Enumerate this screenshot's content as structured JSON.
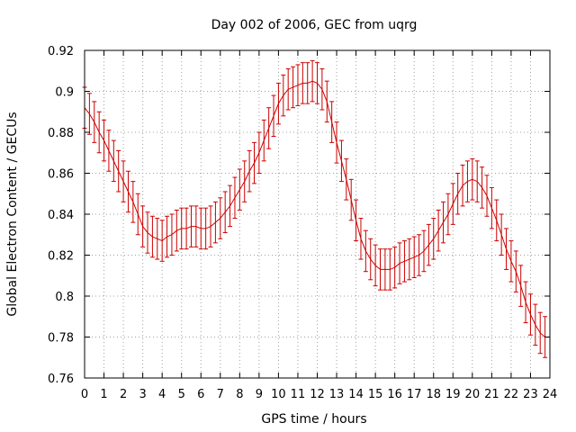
{
  "chart_data": {
    "type": "line",
    "title": "Day 002 of 2006, GEC from uqrg",
    "xlabel": "GPS time / hours",
    "ylabel": "Global Electron Content / GECUs",
    "xlim": [
      0,
      24
    ],
    "ylim": [
      0.76,
      0.92
    ],
    "x_ticks": [
      "0",
      "1",
      "2",
      "3",
      "4",
      "5",
      "6",
      "7",
      "8",
      "9",
      "10",
      "11",
      "12",
      "13",
      "14",
      "15",
      "16",
      "17",
      "18",
      "19",
      "20",
      "21",
      "22",
      "23",
      "24"
    ],
    "y_ticks": [
      "0.76",
      "0.78",
      "0.8",
      "0.82",
      "0.84",
      "0.86",
      "0.88",
      "0.9",
      "0.92"
    ],
    "grid": true,
    "series": [
      {
        "name": "GEC",
        "color": "#cc0000",
        "error_bar": 0.01,
        "points": [
          [
            0.0,
            0.892
          ],
          [
            0.25,
            0.889
          ],
          [
            0.5,
            0.885
          ],
          [
            0.75,
            0.88
          ],
          [
            1.0,
            0.876
          ],
          [
            1.25,
            0.871
          ],
          [
            1.5,
            0.866
          ],
          [
            1.75,
            0.861
          ],
          [
            2.0,
            0.856
          ],
          [
            2.25,
            0.851
          ],
          [
            2.5,
            0.846
          ],
          [
            2.75,
            0.84
          ],
          [
            3.0,
            0.834
          ],
          [
            3.25,
            0.831
          ],
          [
            3.5,
            0.829
          ],
          [
            3.75,
            0.828
          ],
          [
            4.0,
            0.827
          ],
          [
            4.25,
            0.829
          ],
          [
            4.5,
            0.83
          ],
          [
            4.75,
            0.832
          ],
          [
            5.0,
            0.833
          ],
          [
            5.25,
            0.833
          ],
          [
            5.5,
            0.834
          ],
          [
            5.75,
            0.834
          ],
          [
            6.0,
            0.833
          ],
          [
            6.25,
            0.833
          ],
          [
            6.5,
            0.834
          ],
          [
            6.75,
            0.836
          ],
          [
            7.0,
            0.838
          ],
          [
            7.25,
            0.841
          ],
          [
            7.5,
            0.844
          ],
          [
            7.75,
            0.848
          ],
          [
            8.0,
            0.852
          ],
          [
            8.25,
            0.856
          ],
          [
            8.5,
            0.861
          ],
          [
            8.75,
            0.865
          ],
          [
            9.0,
            0.87
          ],
          [
            9.25,
            0.876
          ],
          [
            9.5,
            0.882
          ],
          [
            9.75,
            0.888
          ],
          [
            10.0,
            0.894
          ],
          [
            10.25,
            0.898
          ],
          [
            10.5,
            0.901
          ],
          [
            10.75,
            0.902
          ],
          [
            11.0,
            0.903
          ],
          [
            11.25,
            0.904
          ],
          [
            11.5,
            0.904
          ],
          [
            11.75,
            0.905
          ],
          [
            12.0,
            0.904
          ],
          [
            12.25,
            0.901
          ],
          [
            12.5,
            0.895
          ],
          [
            12.75,
            0.885
          ],
          [
            13.0,
            0.875
          ],
          [
            13.25,
            0.866
          ],
          [
            13.5,
            0.857
          ],
          [
            13.75,
            0.847
          ],
          [
            14.0,
            0.837
          ],
          [
            14.25,
            0.828
          ],
          [
            14.5,
            0.822
          ],
          [
            14.75,
            0.818
          ],
          [
            15.0,
            0.815
          ],
          [
            15.25,
            0.813
          ],
          [
            15.5,
            0.813
          ],
          [
            15.75,
            0.813
          ],
          [
            16.0,
            0.814
          ],
          [
            16.25,
            0.816
          ],
          [
            16.5,
            0.817
          ],
          [
            16.75,
            0.818
          ],
          [
            17.0,
            0.819
          ],
          [
            17.25,
            0.82
          ],
          [
            17.5,
            0.822
          ],
          [
            17.75,
            0.825
          ],
          [
            18.0,
            0.828
          ],
          [
            18.25,
            0.832
          ],
          [
            18.5,
            0.836
          ],
          [
            18.75,
            0.84
          ],
          [
            19.0,
            0.845
          ],
          [
            19.25,
            0.85
          ],
          [
            19.5,
            0.854
          ],
          [
            19.75,
            0.856
          ],
          [
            20.0,
            0.857
          ],
          [
            20.25,
            0.856
          ],
          [
            20.5,
            0.853
          ],
          [
            20.75,
            0.849
          ],
          [
            21.0,
            0.843
          ],
          [
            21.25,
            0.837
          ],
          [
            21.5,
            0.83
          ],
          [
            21.75,
            0.823
          ],
          [
            22.0,
            0.817
          ],
          [
            22.25,
            0.812
          ],
          [
            22.5,
            0.805
          ],
          [
            22.75,
            0.797
          ],
          [
            23.0,
            0.791
          ],
          [
            23.25,
            0.786
          ],
          [
            23.5,
            0.782
          ],
          [
            23.75,
            0.78
          ]
        ]
      }
    ]
  }
}
